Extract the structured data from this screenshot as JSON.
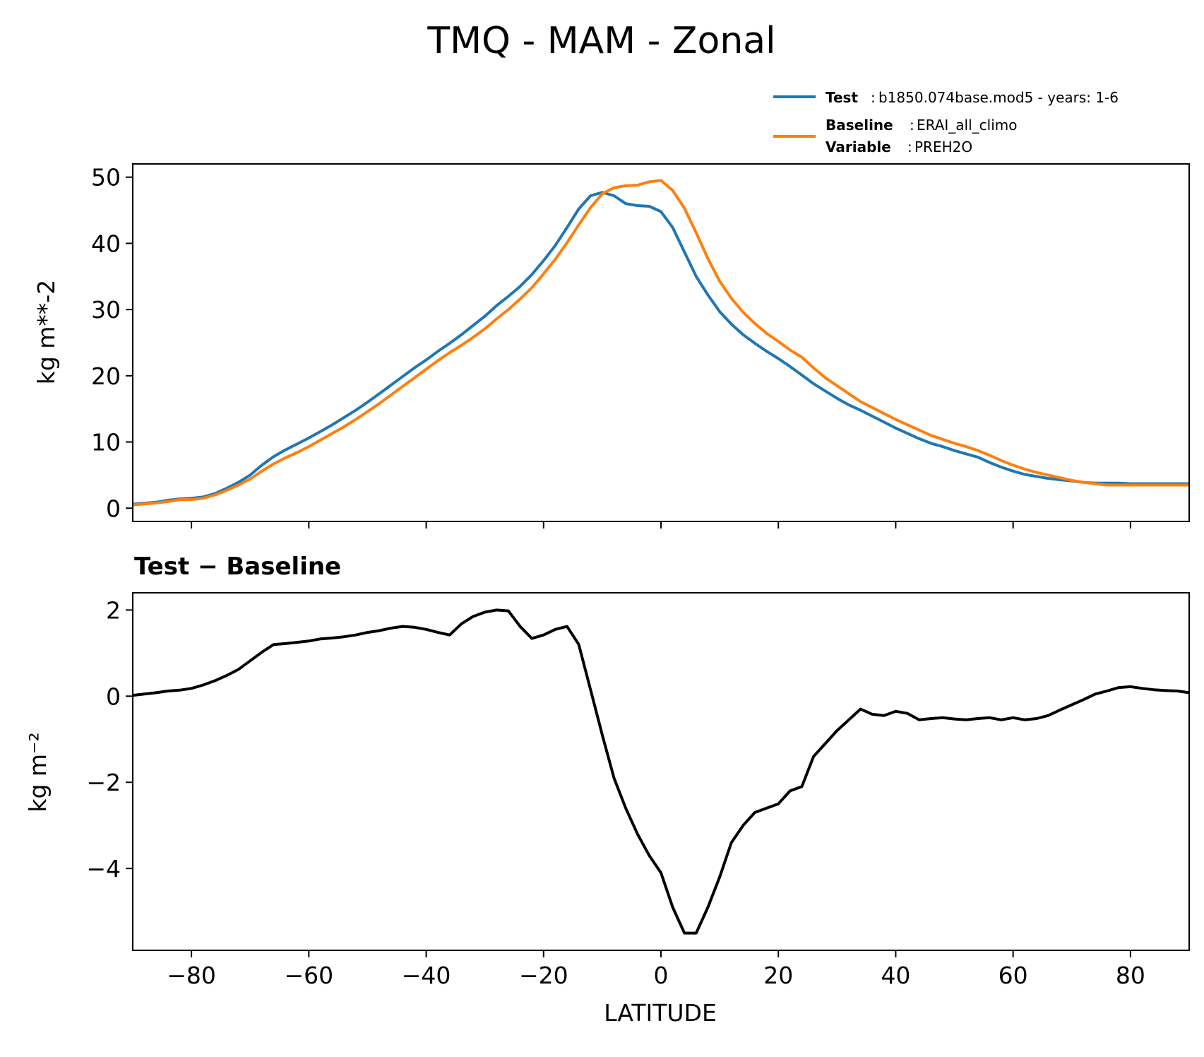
{
  "chart_data": [
    {
      "type": "line",
      "title": "TMQ - MAM - Zonal",
      "ylabel": "kg m**-2",
      "xlim": [
        -90,
        90
      ],
      "ylim": [
        -2,
        52
      ],
      "yticks": [
        0,
        10,
        20,
        30,
        40,
        50
      ],
      "legend": {
        "placement": "top-right, above axes",
        "entries": [
          {
            "key": "Test",
            "text": "b1850.074base.mod5 - years: 1-6",
            "color": "#1f77b4"
          },
          {
            "key": "Baseline",
            "text": "ERAI_all_climo",
            "color": "#ff7f0e"
          },
          {
            "key": "Variable",
            "text": "PREH2O",
            "color": "#ff7f0e"
          }
        ]
      },
      "x": [
        -90,
        -86,
        -84,
        -82,
        -80,
        -78,
        -76,
        -74,
        -72,
        -70,
        -68,
        -66,
        -64,
        -62,
        -60,
        -58,
        -56,
        -54,
        -52,
        -50,
        -48,
        -46,
        -44,
        -42,
        -40,
        -38,
        -36,
        -34,
        -32,
        -30,
        -28,
        -26,
        -24,
        -22,
        -20,
        -18,
        -16,
        -14,
        -12,
        -10,
        -8,
        -6,
        -4,
        -2,
        0,
        2,
        4,
        6,
        8,
        10,
        12,
        14,
        16,
        18,
        20,
        22,
        24,
        26,
        28,
        30,
        32,
        34,
        36,
        38,
        40,
        42,
        44,
        46,
        48,
        50,
        52,
        54,
        56,
        58,
        60,
        62,
        64,
        66,
        68,
        70,
        72,
        74,
        76,
        78,
        80,
        82,
        84,
        86,
        88,
        90
      ],
      "series": [
        {
          "name": "Test",
          "color": "#1f77b4",
          "values": [
            0.6,
            0.9,
            1.2,
            1.4,
            1.5,
            1.7,
            2.2,
            3.0,
            3.9,
            5.0,
            6.5,
            7.8,
            8.8,
            9.7,
            10.6,
            11.6,
            12.6,
            13.7,
            14.8,
            16.0,
            17.3,
            18.6,
            19.9,
            21.2,
            22.4,
            23.7,
            24.9,
            26.2,
            27.6,
            29.0,
            30.6,
            32.0,
            33.5,
            35.3,
            37.4,
            39.7,
            42.4,
            45.2,
            47.2,
            47.7,
            47.2,
            46.0,
            45.7,
            45.6,
            44.8,
            42.4,
            38.7,
            35.0,
            32.2,
            29.7,
            27.8,
            26.2,
            24.9,
            23.7,
            22.6,
            21.4,
            20.1,
            18.8,
            17.7,
            16.6,
            15.6,
            14.8,
            13.9,
            13.0,
            12.1,
            11.3,
            10.5,
            9.8,
            9.3,
            8.7,
            8.2,
            7.7,
            6.9,
            6.2,
            5.6,
            5.1,
            4.8,
            4.5,
            4.3,
            4.1,
            3.9,
            3.8,
            3.8,
            3.8,
            3.7,
            3.7,
            3.7,
            3.7,
            3.7,
            3.7
          ]
        },
        {
          "name": "Baseline",
          "color": "#ff7f0e",
          "values": [
            0.5,
            0.8,
            1.0,
            1.3,
            1.3,
            1.5,
            2.0,
            2.7,
            3.5,
            4.4,
            5.6,
            6.7,
            7.6,
            8.4,
            9.3,
            10.3,
            11.3,
            12.3,
            13.4,
            14.6,
            15.8,
            17.1,
            18.4,
            19.7,
            21.0,
            22.3,
            23.5,
            24.6,
            25.8,
            27.1,
            28.6,
            30.0,
            31.6,
            33.3,
            35.4,
            37.6,
            40.1,
            42.8,
            45.4,
            47.5,
            48.4,
            48.7,
            48.8,
            49.3,
            49.5,
            48.0,
            45.3,
            41.6,
            37.7,
            34.3,
            31.7,
            29.6,
            27.9,
            26.4,
            25.2,
            23.9,
            22.8,
            21.2,
            19.7,
            18.5,
            17.3,
            16.1,
            15.2,
            14.3,
            13.4,
            12.6,
            11.8,
            11.0,
            10.4,
            9.8,
            9.3,
            8.7,
            8.0,
            7.2,
            6.5,
            5.9,
            5.4,
            5.0,
            4.6,
            4.2,
            3.9,
            3.7,
            3.5,
            3.5,
            3.5,
            3.5,
            3.5,
            3.5,
            3.5,
            3.5
          ]
        }
      ]
    },
    {
      "type": "line",
      "title": "Test − Baseline",
      "xlabel": "LATITUDE",
      "ylabel": "kg m⁻²",
      "xlim": [
        -90,
        90
      ],
      "ylim": [
        -5.9,
        2.4
      ],
      "xticks": [
        -80,
        -60,
        -40,
        -20,
        0,
        20,
        40,
        60,
        80
      ],
      "yticks": [
        -4,
        -2,
        0,
        2
      ],
      "series": [
        {
          "name": "",
          "color": "#000000",
          "values": [
            0.02,
            0.08,
            0.12,
            0.14,
            0.18,
            0.26,
            0.36,
            0.48,
            0.62,
            0.82,
            1.02,
            1.2,
            1.22,
            1.25,
            1.28,
            1.33,
            1.35,
            1.38,
            1.42,
            1.48,
            1.52,
            1.58,
            1.62,
            1.6,
            1.55,
            1.48,
            1.42,
            1.68,
            1.85,
            1.95,
            2.0,
            1.98,
            1.62,
            1.34,
            1.42,
            1.55,
            1.62,
            1.2,
            0.15,
            -0.9,
            -1.9,
            -2.6,
            -3.2,
            -3.7,
            -4.1,
            -4.9,
            -5.5,
            -5.5,
            -4.9,
            -4.2,
            -3.4,
            -3.0,
            -2.7,
            -2.6,
            -2.5,
            -2.2,
            -2.1,
            -1.4,
            -1.1,
            -0.8,
            -0.55,
            -0.3,
            -0.42,
            -0.45,
            -0.35,
            -0.4,
            -0.55,
            -0.52,
            -0.5,
            -0.53,
            -0.55,
            -0.52,
            -0.5,
            -0.55,
            -0.5,
            -0.55,
            -0.52,
            -0.45,
            -0.32,
            -0.2,
            -0.08,
            0.05,
            0.12,
            0.2,
            0.22,
            0.18,
            0.15,
            0.13,
            0.12,
            0.08
          ]
        }
      ]
    }
  ]
}
